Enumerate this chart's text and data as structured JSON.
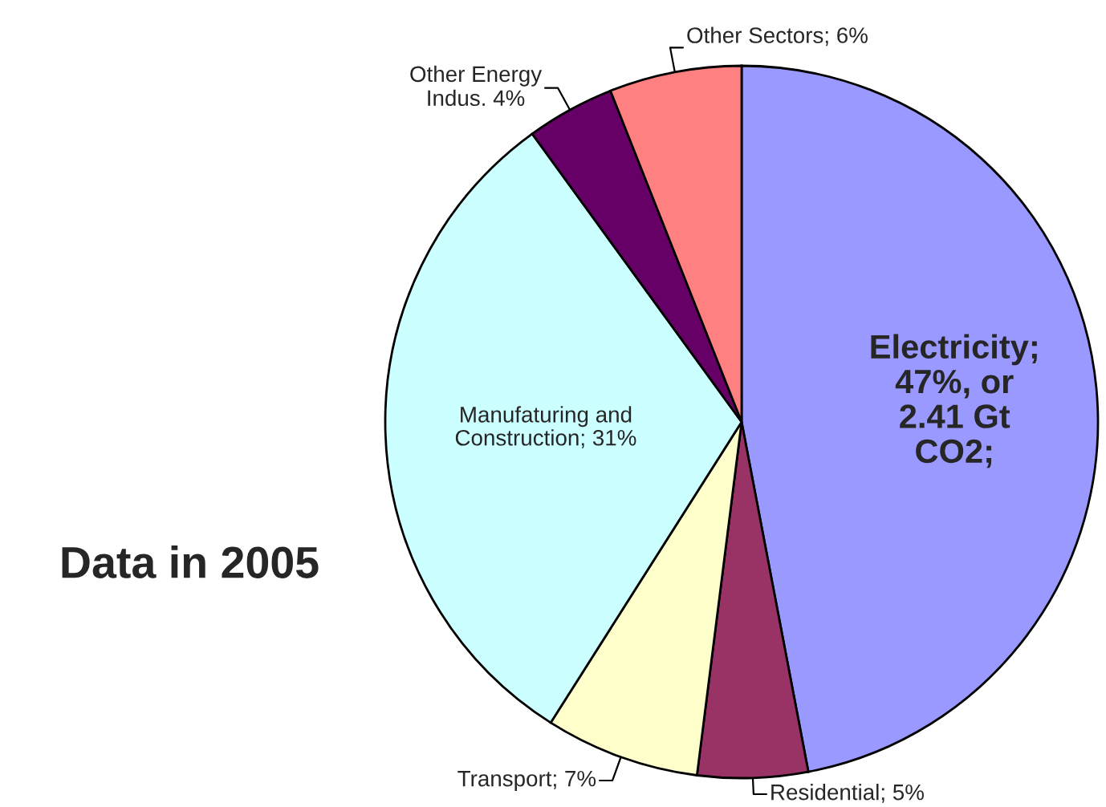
{
  "chart_data": {
    "type": "pie",
    "categories": [
      "Electricity",
      "Residential",
      "Transport",
      "Manufaturing and\nConstruction",
      "Other Energy\nIndus.",
      "Other Sectors"
    ],
    "value_labels": [
      ";\n47%, or\n2.41 Gt\nCO2;",
      "5%",
      "7%",
      "31%",
      "4%",
      "6%"
    ],
    "values": [
      47,
      5,
      7,
      31,
      4,
      6
    ],
    "colors": [
      "#9999ff",
      "#993366",
      "#ffffcc",
      "#ccffff",
      "#660066",
      "#ff8080"
    ],
    "annotations": [
      "Data in 2005"
    ]
  }
}
